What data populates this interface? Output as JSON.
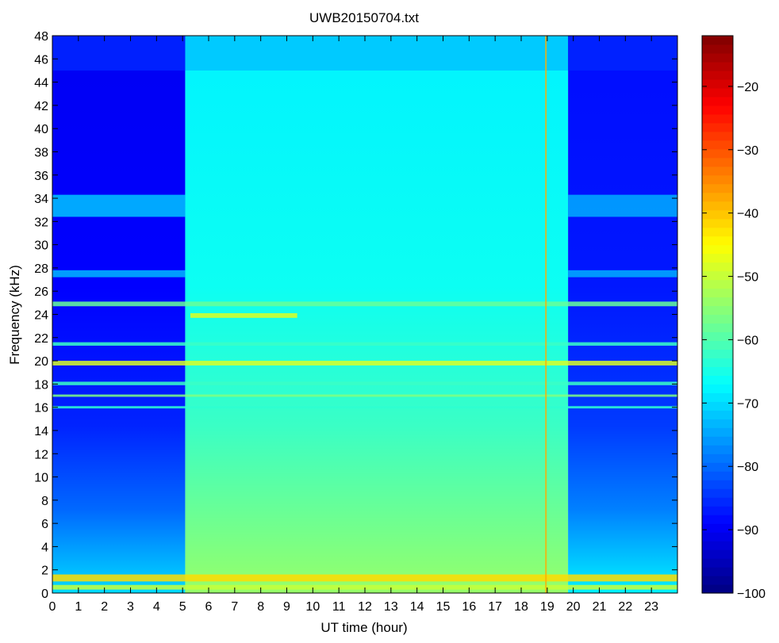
{
  "chart_data": {
    "type": "heatmap",
    "title": "UWB20150704.txt",
    "xlabel": "UT time (hour)",
    "ylabel": "Frequency (kHz)",
    "xlim": [
      0,
      24
    ],
    "ylim": [
      0,
      48
    ],
    "x_ticks": [
      0,
      1,
      2,
      3,
      4,
      5,
      6,
      7,
      8,
      9,
      10,
      11,
      12,
      13,
      14,
      15,
      16,
      17,
      18,
      19,
      20,
      21,
      22,
      23
    ],
    "y_ticks": [
      0,
      2,
      4,
      6,
      8,
      10,
      12,
      14,
      16,
      18,
      20,
      22,
      24,
      26,
      28,
      30,
      32,
      34,
      36,
      38,
      40,
      42,
      44,
      46,
      48
    ],
    "colorbar": {
      "range": [
        -100,
        -12
      ],
      "ticks": [
        -20,
        -30,
        -40,
        -50,
        -60,
        -70,
        -80,
        -90,
        -100
      ],
      "tick_labels": [
        "−20",
        "−30",
        "−40",
        "−50",
        "−60",
        "−70",
        "−80",
        "−90",
        "−100"
      ],
      "colormap": "jet"
    },
    "regions": [
      {
        "name": "night",
        "x": [
          0,
          5.1
        ],
        "background_level": -90
      },
      {
        "name": "day",
        "x": [
          5.1,
          19.8
        ],
        "background_level": -68
      },
      {
        "name": "night",
        "x": [
          19.8,
          24
        ],
        "background_level": -88
      }
    ],
    "bands": [
      {
        "name": "top-lower-level",
        "x": [
          0,
          24
        ],
        "y": [
          45,
          48
        ],
        "level_night": -86,
        "level_day": -72
      },
      {
        "name": "transmitter-19.8kHz",
        "x": [
          0,
          24
        ],
        "y": [
          19.6,
          20.0
        ],
        "level": -48
      },
      {
        "name": "transmitter-21.4kHz",
        "x": [
          0,
          24
        ],
        "y": [
          21.3,
          21.6
        ],
        "level": -62
      },
      {
        "name": "transmitter-24.8kHz",
        "x": [
          0,
          24
        ],
        "y": [
          24.7,
          25.1
        ],
        "level": -58
      },
      {
        "name": "transmitter-23.9kHz",
        "x": [
          5.3,
          9.4
        ],
        "y": [
          23.7,
          24.1
        ],
        "level": -48
      },
      {
        "name": "transmitter-17.0kHz",
        "x": [
          0,
          24
        ],
        "y": [
          16.9,
          17.1
        ],
        "level": -56
      },
      {
        "name": "transmitter-16.0kHz",
        "x": [
          0,
          24
        ],
        "y": [
          15.9,
          16.1
        ],
        "level": -63
      },
      {
        "name": "band-33kHz",
        "x": [
          0,
          5.1
        ],
        "y": [
          32.4,
          34.3
        ],
        "level": -72
      },
      {
        "name": "band-33kHz",
        "x": [
          19.8,
          24
        ],
        "y": [
          32.4,
          34.3
        ],
        "level": -74
      },
      {
        "name": "band-27.5kHz",
        "x": [
          0,
          5.1
        ],
        "y": [
          27.2,
          27.8
        ],
        "level": -73
      },
      {
        "name": "band-27.5kHz",
        "x": [
          19.8,
          24
        ],
        "y": [
          27.2,
          27.8
        ],
        "level": -74
      },
      {
        "name": "band-18kHz",
        "x": [
          0,
          24
        ],
        "y": [
          17.9,
          18.2
        ],
        "level": -62
      },
      {
        "name": "low-freq",
        "x": [
          0,
          24
        ],
        "y": [
          1.0,
          1.6
        ],
        "level": -42
      },
      {
        "name": "low-freq-0.5",
        "x": [
          0,
          24
        ],
        "y": [
          0.3,
          0.7
        ],
        "level": -50
      }
    ],
    "vertical_lines": [
      {
        "x": 18.95,
        "level": -38
      }
    ]
  }
}
